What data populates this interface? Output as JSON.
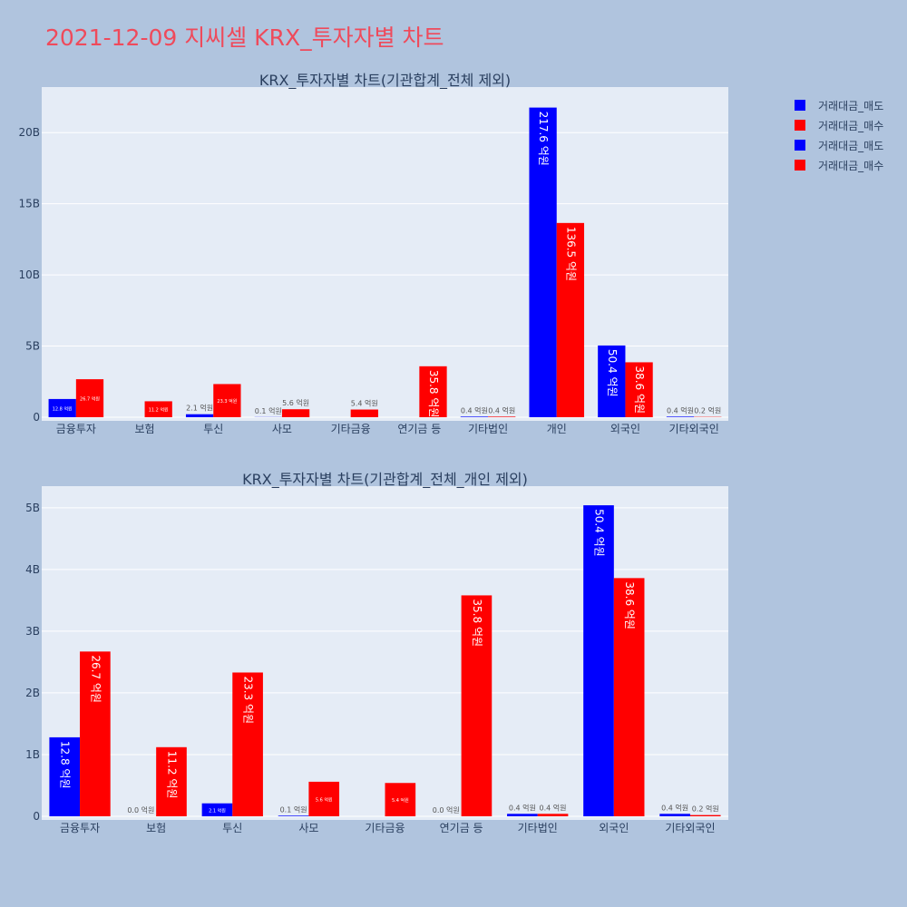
{
  "page": {
    "title": "2021-12-09 지씨셀 KRX_투자자별 차트"
  },
  "legend": [
    {
      "label": "거래대금_매도",
      "color": "#0000ff"
    },
    {
      "label": "거래대금_매수",
      "color": "#ff0000"
    },
    {
      "label": "거래대금_매도",
      "color": "#0000ff"
    },
    {
      "label": "거래대금_매수",
      "color": "#ff0000"
    }
  ],
  "colors": {
    "sell": "#0000ff",
    "buy": "#ff0000",
    "plot_bg": "#e5ecf6",
    "page_bg": "#b0c4de",
    "grid": "#ffffff"
  },
  "chart_data": [
    {
      "type": "bar",
      "title": "KRX_투자자별 차트(기관합계_전체 제외)",
      "categories": [
        "금융투자",
        "보험",
        "투신",
        "사모",
        "기타금융",
        "연기금 등",
        "기타법인",
        "개인",
        "외국인",
        "기타외국인"
      ],
      "series": [
        {
          "name": "거래대금_매도",
          "color": "#0000ff",
          "values": [
            1280000000,
            0,
            210000000,
            10000000,
            0,
            0,
            40000000,
            21760000000,
            5040000000,
            40000000
          ],
          "labels": [
            "12.8 억원",
            "",
            "2.1 억원",
            "0.1 억원",
            "",
            "",
            "0.4 억원",
            "217.6 억원",
            "50.4 억원",
            "0.4 억원"
          ]
        },
        {
          "name": "거래대금_매수",
          "color": "#ff0000",
          "values": [
            2670000000,
            1120000000,
            2330000000,
            560000000,
            540000000,
            3580000000,
            40000000,
            13650000000,
            3860000000,
            20000000
          ],
          "labels": [
            "26.7 억원",
            "11.2 억원",
            "23.3 억원",
            "5.6 억원",
            "5.4 억원",
            "35.8 억원",
            "0.4 억원",
            "136.5 억원",
            "38.6 억원",
            "0.2 억원"
          ]
        }
      ],
      "ylim": [
        0,
        23200000000
      ],
      "yticks": [
        0,
        5000000000,
        10000000000,
        15000000000,
        20000000000
      ],
      "yticklabels": [
        "0",
        "5B",
        "10B",
        "15B",
        "20B"
      ],
      "grid": true
    },
    {
      "type": "bar",
      "title": "KRX_투자자별 차트(기관합계_전체_개인 제외)",
      "categories": [
        "금융투자",
        "보험",
        "투신",
        "사모",
        "기타금융",
        "연기금 등",
        "기타법인",
        "외국인",
        "기타외국인"
      ],
      "series": [
        {
          "name": "거래대금_매도",
          "color": "#0000ff",
          "values": [
            1280000000,
            0,
            210000000,
            10000000,
            0,
            0,
            40000000,
            5040000000,
            40000000
          ],
          "labels": [
            "12.8 억원",
            "0.0 억원",
            "2.1 억원",
            "0.1 억원",
            "",
            "0.0 억원",
            "0.4 억원",
            "50.4 억원",
            "0.4 억원"
          ]
        },
        {
          "name": "거래대금_매수",
          "color": "#ff0000",
          "values": [
            2670000000,
            1120000000,
            2330000000,
            560000000,
            540000000,
            3580000000,
            40000000,
            3860000000,
            20000000
          ],
          "labels": [
            "26.7 억원",
            "11.2 억원",
            "23.3 억원",
            "5.6 억원",
            "5.4 억원",
            "35.8 억원",
            "0.4 억원",
            "38.6 억원",
            "0.2 억원"
          ]
        }
      ],
      "ylim": [
        0,
        5350000000
      ],
      "yticks": [
        0,
        1000000000,
        2000000000,
        3000000000,
        4000000000,
        5000000000
      ],
      "yticklabels": [
        "0",
        "1B",
        "2B",
        "3B",
        "4B",
        "5B"
      ],
      "grid": true
    }
  ]
}
